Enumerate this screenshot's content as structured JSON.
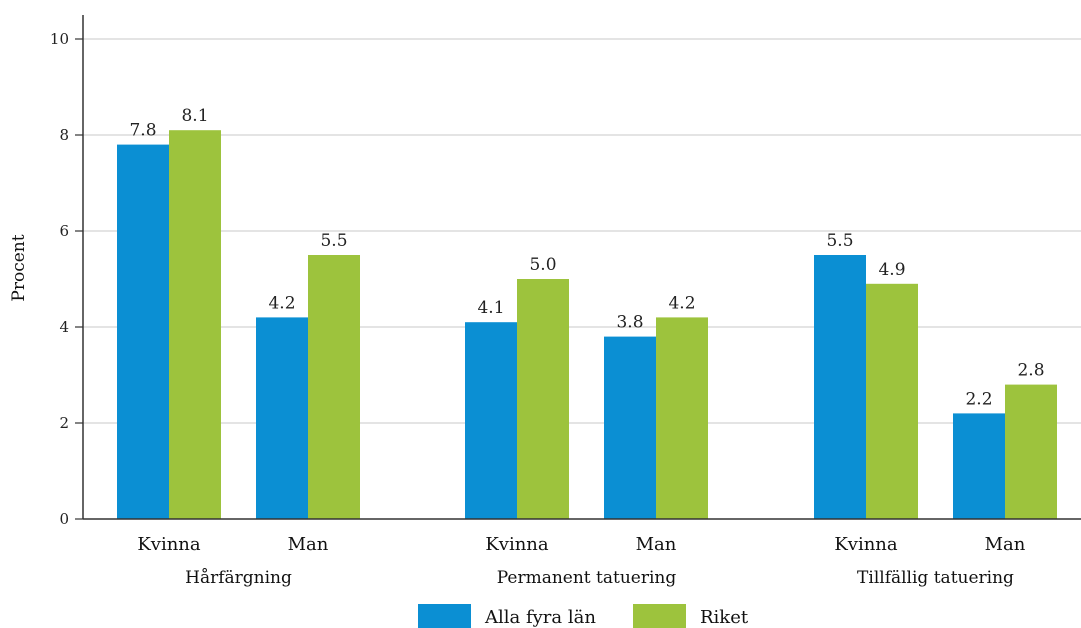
{
  "chart_data": {
    "type": "bar",
    "ylabel": "Procent",
    "ylim": [
      0,
      10
    ],
    "yticks": [
      0,
      2,
      4,
      6,
      8,
      10
    ],
    "grid": true,
    "legend_position": "bottom",
    "groups": [
      {
        "label": "Hårfärgning",
        "categories": [
          "Kvinna",
          "Man"
        ]
      },
      {
        "label": "Permanent tatuering",
        "categories": [
          "Kvinna",
          "Man"
        ]
      },
      {
        "label": "Tillfällig tatuering",
        "categories": [
          "Kvinna",
          "Man"
        ]
      }
    ],
    "series": [
      {
        "name": "Alla fyra län",
        "color": "#0b8fd3",
        "values": [
          7.8,
          4.2,
          4.1,
          3.8,
          5.5,
          2.2
        ],
        "labels": [
          "7.8",
          "4.2",
          "4.1",
          "3.8",
          "5.5",
          "2.2"
        ]
      },
      {
        "name": "Riket",
        "color": "#9dc33d",
        "values": [
          8.1,
          5.5,
          5.0,
          4.2,
          4.9,
          2.8
        ],
        "labels": [
          "8.1",
          "5.5",
          "5.0",
          "4.2",
          "4.9",
          "2.8"
        ]
      }
    ]
  }
}
